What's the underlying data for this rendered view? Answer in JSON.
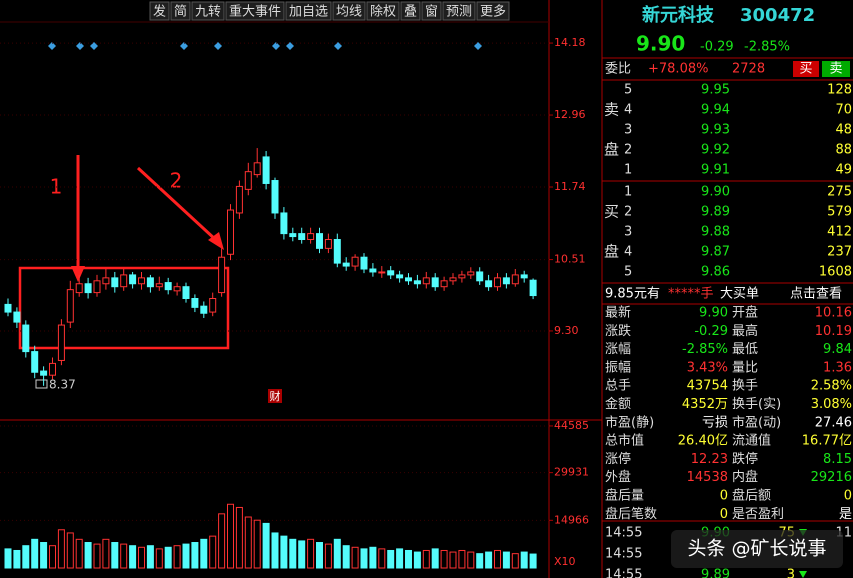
{
  "toolbar": [
    "发",
    "简",
    "九转",
    "重大事件",
    "加自选",
    "均线",
    "除权",
    "叠",
    "窗",
    "预测",
    "更多"
  ],
  "chart_data": {
    "type": "candlestick",
    "open": [
      9.75,
      9.62,
      9.4,
      8.95,
      8.62,
      8.55,
      8.8,
      9.45,
      9.95,
      10.1,
      9.95,
      10.1,
      10.2,
      10.05,
      10.25,
      10.1,
      10.2,
      10.05,
      10.12,
      9.98,
      10.05,
      9.85,
      9.72,
      9.62,
      9.95,
      10.6,
      11.3,
      11.7,
      11.95,
      12.25,
      11.85,
      11.3,
      10.95,
      10.95,
      10.85,
      10.95,
      10.7,
      10.85,
      10.45,
      10.4,
      10.55,
      10.35,
      10.3,
      10.32,
      10.25,
      10.2,
      10.15,
      10.1,
      10.2,
      10.05,
      10.15,
      10.2,
      10.25,
      10.3,
      10.15,
      10.05,
      10.2,
      10.1,
      10.25,
      10.16
    ],
    "close": [
      9.62,
      9.45,
      8.95,
      8.6,
      8.55,
      8.75,
      9.4,
      10.0,
      10.1,
      9.95,
      10.15,
      10.2,
      10.05,
      10.25,
      10.1,
      10.2,
      10.05,
      10.1,
      10.0,
      10.05,
      9.85,
      9.7,
      9.6,
      9.85,
      10.55,
      11.35,
      11.75,
      12.0,
      12.15,
      11.8,
      11.3,
      10.95,
      10.9,
      10.85,
      10.95,
      10.7,
      10.85,
      10.45,
      10.4,
      10.55,
      10.35,
      10.3,
      10.3,
      10.25,
      10.2,
      10.15,
      10.1,
      10.2,
      10.05,
      10.15,
      10.2,
      10.25,
      10.3,
      10.15,
      10.05,
      10.2,
      10.1,
      10.25,
      10.2,
      9.9
    ],
    "high": [
      9.85,
      9.7,
      9.48,
      9.05,
      8.7,
      8.85,
      9.5,
      10.15,
      10.25,
      10.2,
      10.25,
      10.35,
      10.3,
      10.35,
      10.3,
      10.3,
      10.25,
      10.22,
      10.2,
      10.12,
      10.12,
      9.92,
      9.8,
      9.95,
      10.7,
      11.45,
      11.85,
      12.15,
      12.4,
      12.35,
      11.9,
      11.4,
      11.05,
      11.05,
      11.05,
      11.05,
      10.95,
      10.95,
      10.55,
      10.6,
      10.62,
      10.45,
      10.4,
      10.4,
      10.32,
      10.28,
      10.25,
      10.3,
      10.28,
      10.22,
      10.28,
      10.32,
      10.38,
      10.38,
      10.25,
      10.28,
      10.28,
      10.35,
      10.32,
      10.19
    ],
    "low": [
      9.55,
      9.35,
      8.85,
      8.5,
      8.37,
      8.48,
      8.72,
      9.35,
      9.88,
      9.85,
      9.88,
      10.0,
      9.95,
      9.98,
      10.02,
      10.0,
      9.95,
      9.98,
      9.92,
      9.9,
      9.78,
      9.62,
      9.52,
      9.55,
      9.88,
      10.5,
      11.2,
      11.6,
      11.9,
      11.7,
      11.2,
      10.85,
      10.82,
      10.78,
      10.78,
      10.62,
      10.62,
      10.38,
      10.32,
      10.32,
      10.28,
      10.22,
      10.2,
      10.18,
      10.12,
      10.08,
      10.02,
      10.02,
      9.98,
      9.98,
      10.08,
      10.12,
      10.18,
      10.08,
      9.98,
      9.98,
      10.02,
      10.05,
      10.12,
      9.84
    ],
    "volume": [
      6000,
      5500,
      7000,
      9000,
      8000,
      7000,
      12000,
      11000,
      9000,
      8000,
      7500,
      9000,
      8000,
      7500,
      7000,
      6500,
      7000,
      6000,
      6500,
      7000,
      7500,
      8000,
      9000,
      10000,
      17000,
      20000,
      19000,
      16000,
      15000,
      14000,
      11000,
      10000,
      9000,
      8500,
      9000,
      8000,
      7500,
      9000,
      7000,
      6500,
      6000,
      6500,
      6000,
      5500,
      6000,
      5500,
      5000,
      5500,
      6000,
      5500,
      5000,
      5500,
      5000,
      4500,
      5000,
      5500,
      5000,
      4500,
      5000,
      4375
    ],
    "ylim": [
      7.96,
      14.91
    ],
    "yticks": [
      14.18,
      12.96,
      11.74,
      10.51,
      {
        "value": 9.3,
        "label": "9.30"
      }
    ],
    "y2lim": [
      0,
      46450
    ],
    "y2ticks": [
      44585,
      29931,
      14966
    ],
    "y2unit": "X10",
    "low_label": "8.37",
    "event_marker": "财",
    "annotations": [
      "1",
      "2"
    ],
    "grid": true
  },
  "quote": {
    "name": "新元科技",
    "code": "300472",
    "price": "9.90",
    "change": "-0.29",
    "pct": "-2.85%"
  },
  "ratio": {
    "label": "委比",
    "value": "+78.08%",
    "diff": "2728",
    "buy": "买",
    "sell": "卖"
  },
  "sell": {
    "labels": [
      "卖",
      "盘"
    ],
    "rows": [
      [
        "5",
        "9.95",
        "128"
      ],
      [
        "4",
        "9.94",
        "70"
      ],
      [
        "3",
        "9.93",
        "48"
      ],
      [
        "2",
        "9.92",
        "88"
      ],
      [
        "1",
        "9.91",
        "49"
      ]
    ]
  },
  "buy": {
    "labels": [
      "买",
      "盘"
    ],
    "rows": [
      [
        "1",
        "9.90",
        "275"
      ],
      [
        "2",
        "9.89",
        "579"
      ],
      [
        "3",
        "9.88",
        "412"
      ],
      [
        "4",
        "9.87",
        "237"
      ],
      [
        "5",
        "9.86",
        "1608"
      ]
    ]
  },
  "big_order": {
    "text": "9.85元有",
    "stars": "*****手",
    "type": "大买单",
    "link": "点击查看"
  },
  "stats": [
    [
      "最新",
      "9.90",
      "开盘",
      "10.16"
    ],
    [
      "涨跌",
      "-0.29",
      "最高",
      "10.19"
    ],
    [
      "涨幅",
      "-2.85%",
      "最低",
      "9.84"
    ],
    [
      "振幅",
      "3.43%",
      "量比",
      "1.36"
    ],
    [
      "总手",
      "43754",
      "换手",
      "2.58%"
    ],
    [
      "金额",
      "4352万",
      "换手(实)",
      "3.08%"
    ],
    [
      "市盈(静)",
      "亏损",
      "市盈(动)",
      "27.46"
    ],
    [
      "总市值",
      "26.40亿",
      "流通值",
      "16.77亿"
    ],
    [
      "涨停",
      "12.23",
      "跌停",
      "8.15"
    ],
    [
      "外盘",
      "14538",
      "内盘",
      "29216"
    ],
    [
      "盘后量",
      "0",
      "盘后额",
      "0"
    ],
    [
      "盘后笔数",
      "0",
      "是否盈利",
      "是"
    ]
  ],
  "trades": [
    [
      "14:55",
      "9.90",
      "75",
      "11"
    ],
    [
      "14:55"
    ],
    [
      "14:55",
      "9.89",
      "3"
    ]
  ],
  "watermark": "头条 @矿长说事"
}
